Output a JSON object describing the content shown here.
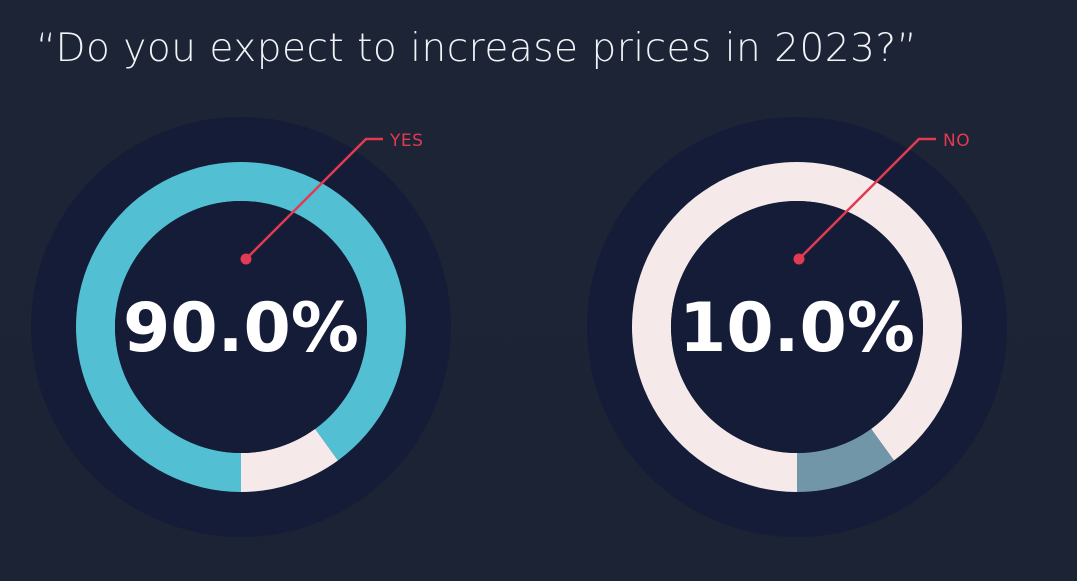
{
  "title": "“Do you expect to increase prices in 2023?”",
  "colors": {
    "background": "#1c2335",
    "outer_disc": "#141c38",
    "inner_disc": "#141c38",
    "accent": "#e23a52",
    "yes_fill": "#52bfd3",
    "light_fill": "#f5e9ea",
    "no_fill": "#7096a8",
    "text": "#ffffff"
  },
  "chart_data": [
    {
      "type": "pie",
      "variant": "donut",
      "title": "",
      "highlight": "YES",
      "value_label": "90.0%",
      "callout_label": "YES",
      "slices": [
        {
          "label": "YES",
          "value": 90.0,
          "color": "#52bfd3"
        },
        {
          "label": "NO",
          "value": 10.0,
          "color": "#f5e9ea"
        }
      ]
    },
    {
      "type": "pie",
      "variant": "donut",
      "title": "",
      "highlight": "NO",
      "value_label": "10.0%",
      "callout_label": "NO",
      "slices": [
        {
          "label": "YES",
          "value": 90.0,
          "color": "#f5e9ea"
        },
        {
          "label": "NO",
          "value": 10.0,
          "color": "#7096a8"
        }
      ]
    }
  ]
}
